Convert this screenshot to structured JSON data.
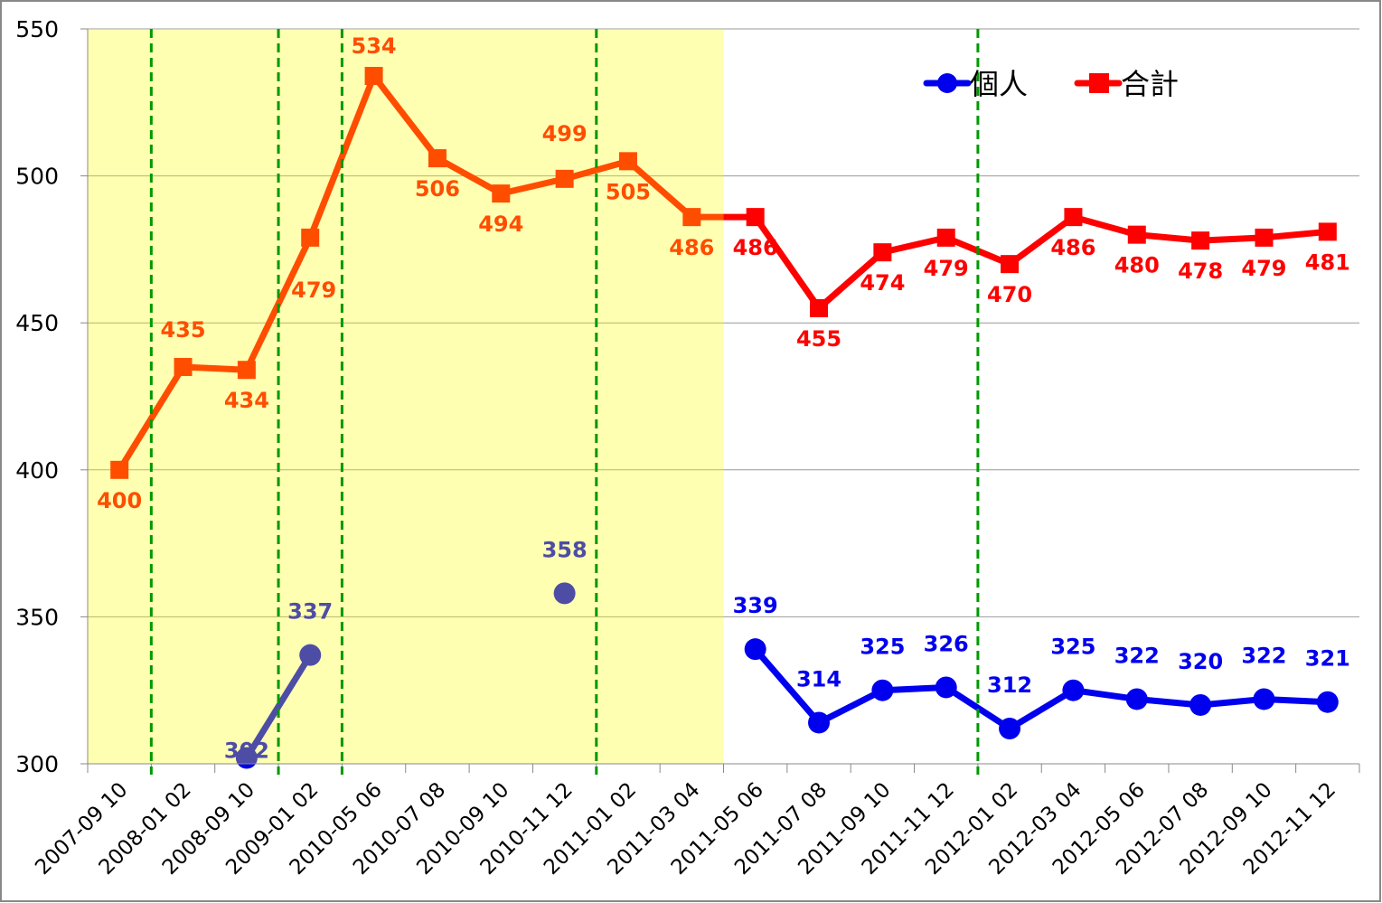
{
  "chart_data": {
    "type": "line",
    "title": "",
    "xlabel": "",
    "ylabel": "",
    "ylim": [
      300,
      550
    ],
    "yticks": [
      300,
      350,
      400,
      450,
      500,
      550
    ],
    "grid": true,
    "legend_position": "top-right",
    "categories": [
      "2007-09 10",
      "2008-01 02",
      "2008-09 10",
      "2009-01 02",
      "2010-05 06",
      "2010-07 08",
      "2010-09 10",
      "2010-11 12",
      "2011-01 02",
      "2011-03 04",
      "2011-05 06",
      "2011-07 08",
      "2011-09 10",
      "2011-11 12",
      "2012-01 02",
      "2012-03 04",
      "2012-05 06",
      "2012-07 08",
      "2012-09 10",
      "2012-11 12"
    ],
    "series": [
      {
        "name": "個人",
        "color": "#0000EE",
        "marker": "circle",
        "values": [
          null,
          null,
          302,
          337,
          null,
          null,
          null,
          358,
          null,
          null,
          339,
          314,
          325,
          326,
          312,
          325,
          322,
          320,
          322,
          321
        ]
      },
      {
        "name": "合計",
        "color": "#FF0000",
        "marker": "square",
        "values": [
          400,
          435,
          434,
          479,
          534,
          506,
          494,
          499,
          505,
          486,
          486,
          455,
          474,
          479,
          470,
          486,
          480,
          478,
          479,
          481
        ]
      }
    ],
    "highlight_region_categories": [
      "2007-09 10",
      "2011-03 04"
    ],
    "highlight_color": "#FFFF00",
    "vertical_dashed_lines_after_categories": [
      "2007-09 10",
      "2008-09 10",
      "2009-01 02",
      "2010-11 12",
      "2011-11 12"
    ],
    "dashed_line_color": "#009900"
  }
}
